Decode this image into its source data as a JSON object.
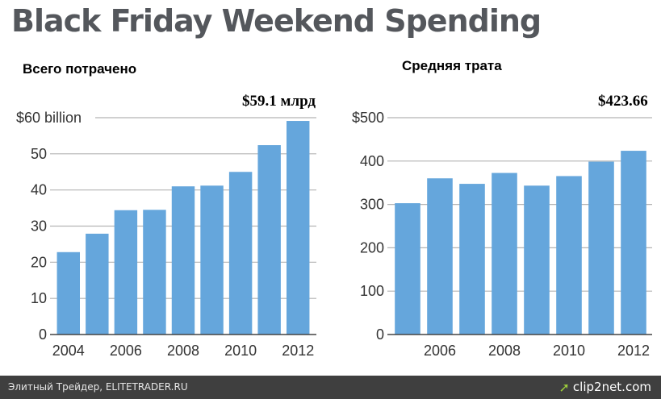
{
  "title": "Black Friday Weekend Spending",
  "footer": {
    "text": "Элитный Трейдер, ELITETRADER.RU",
    "brand": "clip2net.com",
    "brand_icon": "clip2net-arrow-icon"
  },
  "colors": {
    "bar": "#65a6dc",
    "grid": "#b4b4b4",
    "axis": "#444444",
    "title": "#54575c",
    "footer_bg": "#3f3f3f",
    "brand_accent": "#9ccc3c"
  },
  "chart_data": [
    {
      "type": "bar",
      "panel_title": "Всего потрачено",
      "callout": "$59.1 млрд",
      "categories": [
        "2004",
        "2005",
        "2006",
        "2007",
        "2008",
        "2009",
        "2010",
        "2011",
        "2012"
      ],
      "values": [
        22.8,
        27.9,
        34.4,
        34.5,
        41.0,
        41.2,
        45.0,
        52.4,
        59.1
      ],
      "ylim": [
        0,
        60
      ],
      "yticks": [
        0,
        10,
        20,
        30,
        40,
        50,
        60
      ],
      "ytick_labels": [
        "0",
        "10",
        "20",
        "30",
        "40",
        "50",
        "$60 billion"
      ],
      "xtick_labels": [
        "2004",
        "2006",
        "2008",
        "2010",
        "2012"
      ],
      "grid": true
    },
    {
      "type": "bar",
      "panel_title": "Средняя трата",
      "callout": "$423.66",
      "categories": [
        "2005",
        "2006",
        "2007",
        "2008",
        "2009",
        "2010",
        "2011",
        "2012"
      ],
      "values": [
        302.81,
        360.15,
        347.44,
        372.57,
        343.31,
        365.34,
        398.62,
        423.66
      ],
      "ylim": [
        0,
        500
      ],
      "yticks": [
        0,
        100,
        200,
        300,
        400,
        500
      ],
      "ytick_labels": [
        "0",
        "100",
        "200",
        "300",
        "400",
        "$500"
      ],
      "xtick_labels": [
        "2006",
        "2008",
        "2010",
        "2012"
      ],
      "grid": true
    }
  ]
}
